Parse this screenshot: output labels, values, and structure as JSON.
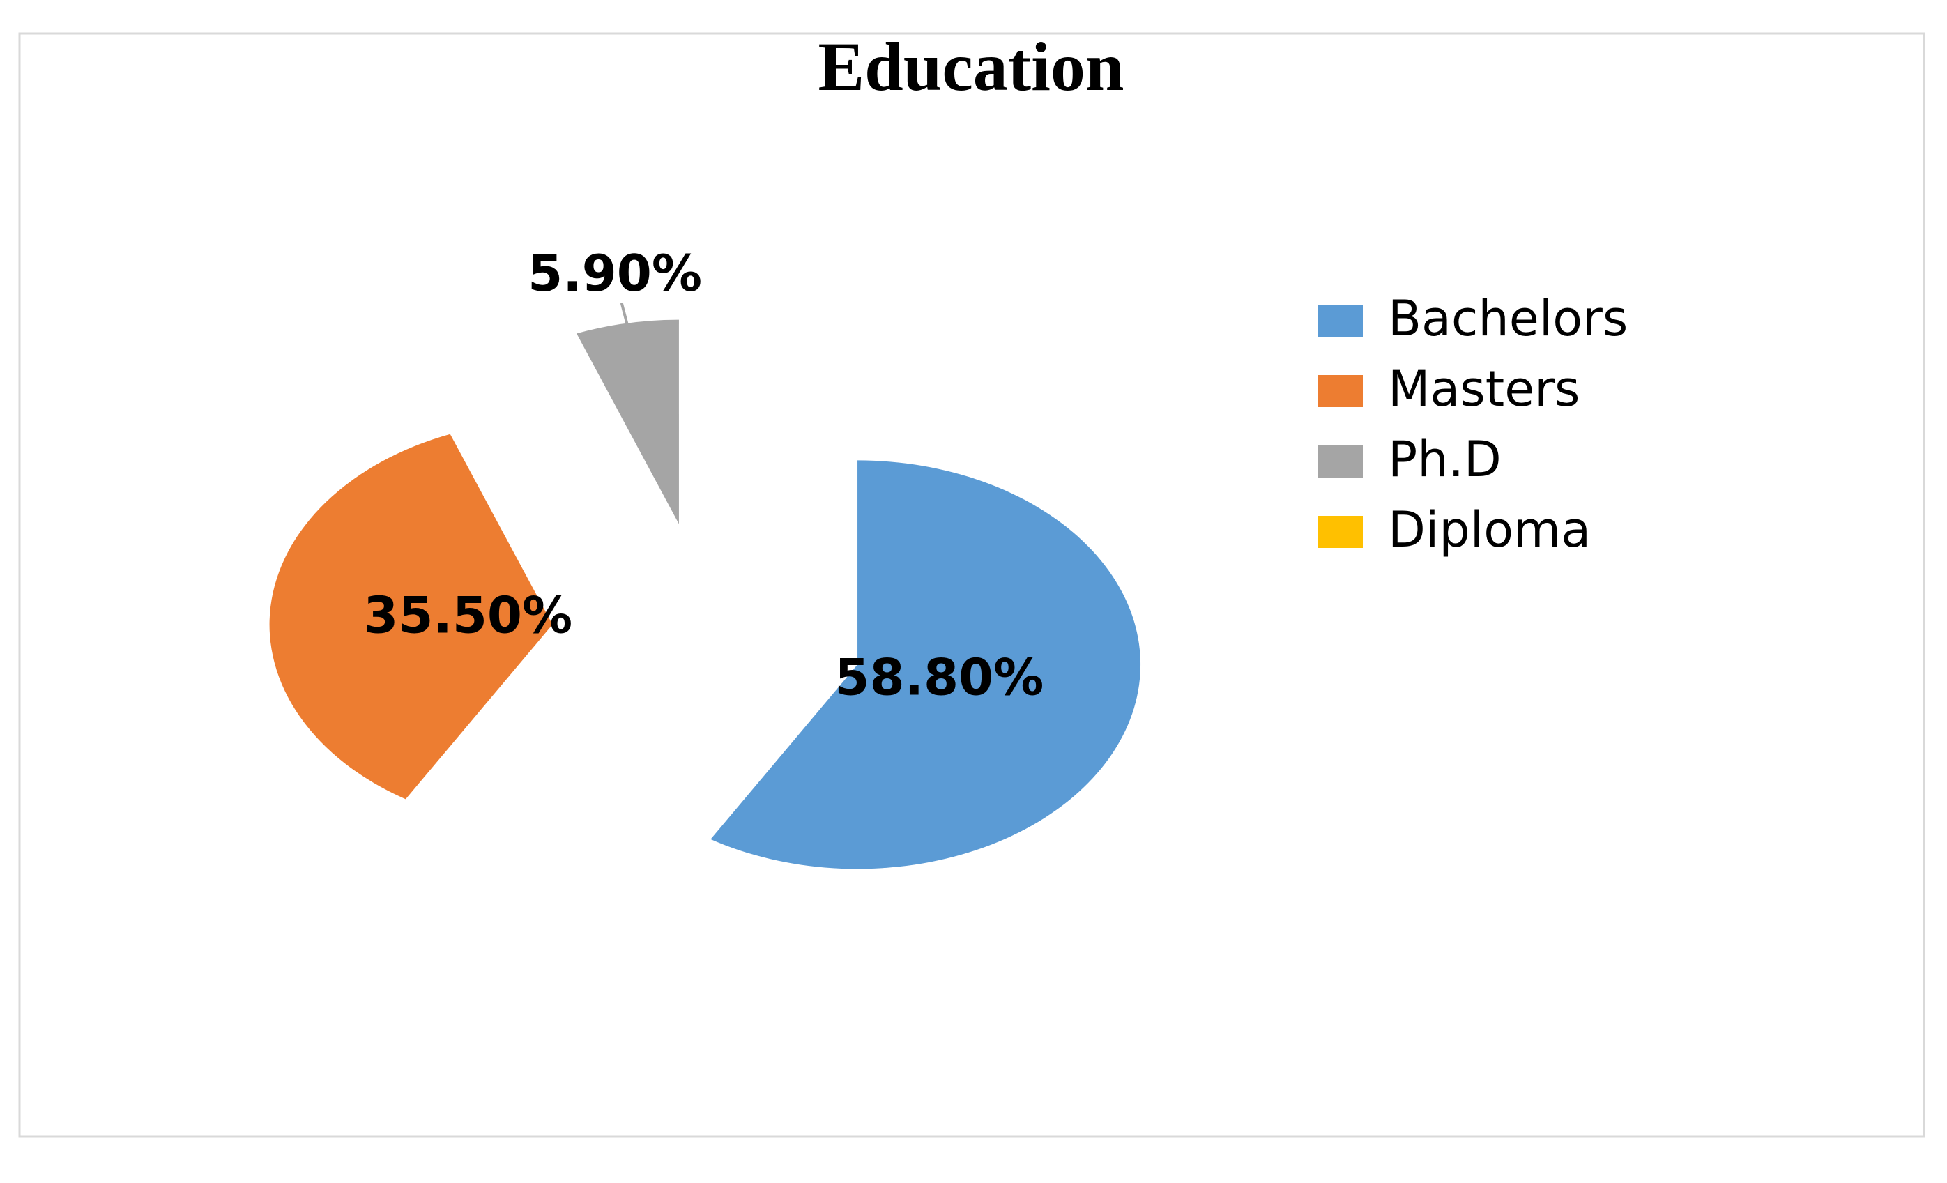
{
  "chart_data": {
    "type": "pie",
    "title": "Education",
    "categories": [
      "Bachelors",
      "Masters",
      "Ph.D",
      "Diploma"
    ],
    "values": [
      58.8,
      35.5,
      5.9,
      0
    ],
    "value_labels": [
      "58.80%",
      "35.50%",
      "5.90%",
      null
    ],
    "colors": [
      "#5b9bd5",
      "#ed7d31",
      "#a5a5a5",
      "#ffc000"
    ],
    "legend": "right"
  }
}
